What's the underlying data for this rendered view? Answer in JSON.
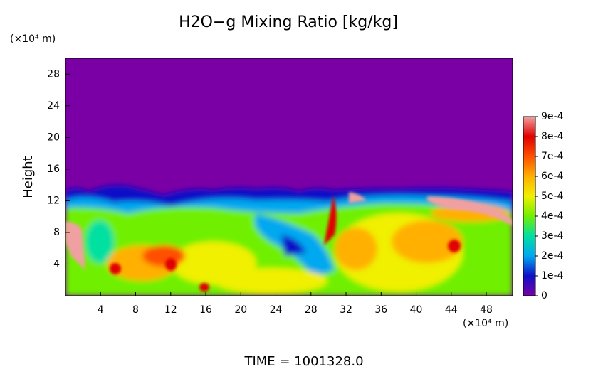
{
  "chart_data": {
    "type": "heatmap",
    "title": "H2O−g Mixing Ratio [kg/kg]",
    "ylabel": "Height",
    "yunit": "(×10⁴ m)",
    "xunit": "(×10⁴ m)",
    "footer": "TIME = 1001328.0",
    "xlim": [
      0,
      51
    ],
    "xticks": [
      4,
      8,
      12,
      16,
      20,
      24,
      28,
      32,
      36,
      40,
      44,
      48
    ],
    "ylim": [
      0,
      30
    ],
    "yticks": [
      4,
      8,
      12,
      16,
      20,
      24,
      28
    ],
    "clim": [
      0,
      0.0009
    ],
    "cticks": [
      0,
      {
        "value": 0.0001,
        "label": "1e-4"
      },
      {
        "value": 0.0002,
        "label": "2e-4"
      },
      {
        "value": 0.0003,
        "label": "3e-4"
      },
      {
        "value": 0.0004,
        "label": "4e-4"
      },
      {
        "value": 0.0005,
        "label": "5e-4"
      },
      {
        "value": 0.0006,
        "label": "6e-4"
      },
      {
        "value": 0.0007,
        "label": "7e-4"
      },
      {
        "value": 0.0008,
        "label": "8e-4"
      },
      {
        "value": 0.0009,
        "label": "9e-4"
      }
    ],
    "colormap": [
      "#7a00a6",
      "#1010c8",
      "#00a8f0",
      "#00e0a0",
      "#70f000",
      "#f0f000",
      "#ffb000",
      "#ff5000",
      "#e00000",
      "#f0a0a0"
    ]
  }
}
